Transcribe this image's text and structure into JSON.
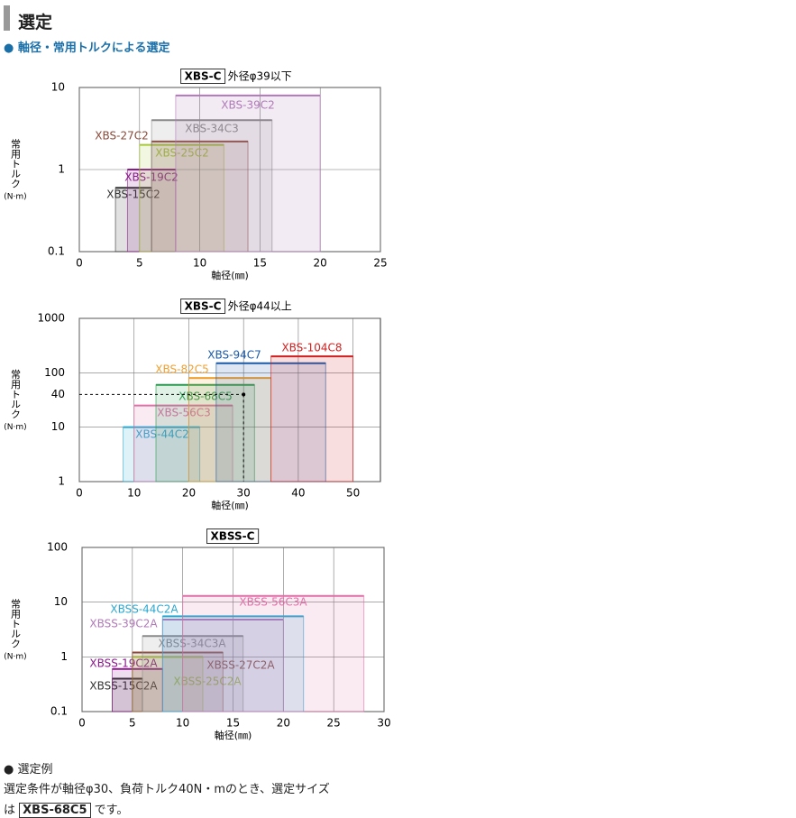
{
  "header": {
    "title": "選定",
    "subtitle": "● 軸径・常用トルクによる選定"
  },
  "chart_data": [
    {
      "type": "range_bar",
      "title": "XBS-C",
      "title_note": "外径φ39以下",
      "xlabel": "軸径(㎜)",
      "ylabel": "常用トルク",
      "yunit": "(N·m)",
      "xlim": [
        0,
        25
      ],
      "xticks": [
        0,
        5,
        10,
        15,
        20,
        25
      ],
      "ylim": [
        0.1,
        10
      ],
      "yticks": [
        0.1,
        1,
        10
      ],
      "log_y": true,
      "grid": true,
      "series": [
        {
          "name": "XBS-15C2",
          "color": "#333333",
          "x_range": [
            3,
            6
          ],
          "value": 0.6
        },
        {
          "name": "XBS-19C2",
          "color": "#8b1a8b",
          "x_range": [
            4,
            8
          ],
          "value": 1
        },
        {
          "name": "XBS-25C2",
          "color": "#a8c83a",
          "x_range": [
            5,
            12
          ],
          "value": 2
        },
        {
          "name": "XBS-27C2",
          "color": "#8b4a3a",
          "x_range": [
            6,
            14
          ],
          "value": 2.2
        },
        {
          "name": "XBS-34C3",
          "color": "#8a8a8a",
          "x_range": [
            6,
            16
          ],
          "value": 4
        },
        {
          "name": "XBS-39C2",
          "color": "#b07ab8",
          "x_range": [
            8,
            20
          ],
          "value": 8
        }
      ]
    },
    {
      "type": "range_bar",
      "title": "XBS-C",
      "title_note": "外径φ44以上",
      "xlabel": "軸径(㎜)",
      "ylabel": "常用トルク",
      "yunit": "(N·m)",
      "xlim": [
        0,
        55
      ],
      "xticks": [
        0,
        10,
        20,
        30,
        40,
        50
      ],
      "ylim": [
        1,
        1000
      ],
      "yticks": [
        1,
        10,
        100,
        1000
      ],
      "log_y": true,
      "grid": true,
      "annotation": {
        "x": 30,
        "y": 40
      },
      "series": [
        {
          "name": "XBS-44C2",
          "color": "#2aa8d0",
          "x_range": [
            8,
            22
          ],
          "value": 10
        },
        {
          "name": "XBS-56C3",
          "color": "#e070a8",
          "x_range": [
            10,
            28
          ],
          "value": 25
        },
        {
          "name": "XBS-68C5",
          "color": "#2a9a50",
          "x_range": [
            14,
            32
          ],
          "value": 60
        },
        {
          "name": "XBS-82C5",
          "color": "#f0a030",
          "x_range": [
            20,
            35
          ],
          "value": 80
        },
        {
          "name": "XBS-94C7",
          "color": "#1a5aa8",
          "x_range": [
            25,
            45
          ],
          "value": 150
        },
        {
          "name": "XBS-104C8",
          "color": "#d02020",
          "x_range": [
            35,
            50
          ],
          "value": 200
        }
      ]
    },
    {
      "type": "range_bar",
      "title": "XBSS-C",
      "xlabel": "軸径(㎜)",
      "ylabel": "常用トルク",
      "yunit": "(N·m)",
      "xlim": [
        0,
        30
      ],
      "xticks": [
        0,
        5,
        10,
        15,
        20,
        25,
        30
      ],
      "ylim": [
        0.1,
        100
      ],
      "yticks": [
        0.1,
        1,
        10,
        100
      ],
      "log_y": true,
      "grid": true,
      "series": [
        {
          "name": "XBSS-15C2A",
          "color": "#333333",
          "x_range": [
            3,
            6
          ],
          "value": 0.4
        },
        {
          "name": "XBSS-19C2A",
          "color": "#8b1a8b",
          "x_range": [
            3,
            8
          ],
          "value": 0.6
        },
        {
          "name": "XBSS-25C2A",
          "color": "#a8c83a",
          "x_range": [
            5,
            12
          ],
          "value": 1
        },
        {
          "name": "XBSS-27C2A",
          "color": "#8b4a3a",
          "x_range": [
            5,
            14
          ],
          "value": 1.2
        },
        {
          "name": "XBSS-34C3A",
          "color": "#8a8a8a",
          "x_range": [
            6,
            16
          ],
          "value": 2.4
        },
        {
          "name": "XBSS-39C2A",
          "color": "#b07ab8",
          "x_range": [
            8,
            20
          ],
          "value": 4.8
        },
        {
          "name": "XBSS-44C2A",
          "color": "#2aa8d0",
          "x_range": [
            8,
            22
          ],
          "value": 5.5
        },
        {
          "name": "XBSS-56C3A",
          "color": "#e070a8",
          "x_range": [
            10,
            28
          ],
          "value": 13
        }
      ]
    }
  ],
  "example": {
    "heading": "● 選定例",
    "line1": "選定条件が軸径φ30、負荷トルク40N・mのとき、選定サイズ",
    "pre": "は",
    "model": "XBS-68C5",
    "post": "です。"
  }
}
